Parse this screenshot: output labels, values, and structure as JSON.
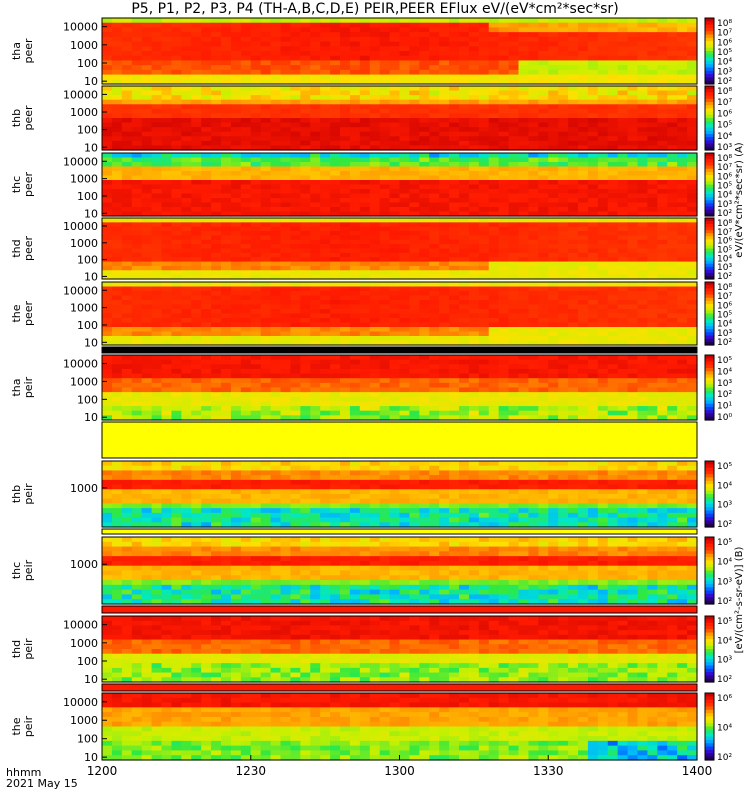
{
  "title": "P5, P1, P2, P3, P4 (TH-A,B,C,D,E) PEIR,PEER EFlux eV/(eV*cm²*sec*sr)",
  "x_axis_label_1": "hhmm",
  "x_axis_label_2": "2021 May 15",
  "colors": {
    "background": "#ffffff",
    "colormap": [
      "#1e0050",
      "#3a00c8",
      "#0050ff",
      "#00b4ff",
      "#00e8c8",
      "#30e840",
      "#c8f000",
      "#ffe000",
      "#ffa000",
      "#ff3c00",
      "#ff1a00",
      "#c80000"
    ],
    "fill_bar": "#ffff00",
    "white_gap": "#ffffff",
    "dark_line": "#000000"
  },
  "chart_data": [
    {
      "type": "heatmap",
      "label": "tha peer",
      "ylabel": [
        "tha",
        "peer"
      ],
      "yscale": "log",
      "ylim": [
        7,
        30000
      ],
      "yticks": [
        "10000",
        "1000",
        "100",
        "10"
      ],
      "colorbar_ticks": [
        "10⁸",
        "10⁷",
        "10⁶",
        "10⁵",
        "10⁴",
        "10³",
        "10²"
      ]
    },
    {
      "type": "heatmap",
      "label": "thb peer",
      "ylabel": [
        "thb",
        "peer"
      ],
      "yscale": "log",
      "ylim": [
        7,
        30000
      ],
      "yticks": [
        "10000",
        "1000",
        "100",
        "10"
      ],
      "colorbar_ticks": [
        "10⁸",
        "10⁷",
        "10⁶",
        "10⁵",
        "10⁴",
        "10³"
      ]
    },
    {
      "type": "heatmap",
      "label": "thc peer",
      "ylabel": [
        "thc",
        "peer"
      ],
      "yscale": "log",
      "ylim": [
        7,
        30000
      ],
      "yticks": [
        "10000",
        "1000",
        "100",
        "10"
      ],
      "colorbar_ticks": [
        "10⁸",
        "10⁷",
        "10⁶",
        "10⁵",
        "10⁴",
        "10³",
        "10²"
      ]
    },
    {
      "type": "heatmap",
      "label": "thd peer",
      "ylabel": [
        "thd",
        "peer"
      ],
      "yscale": "log",
      "ylim": [
        7,
        30000
      ],
      "yticks": [
        "10000",
        "1000",
        "100",
        "10"
      ],
      "colorbar_ticks": [
        "10⁸",
        "10⁷",
        "10⁶",
        "10⁵",
        "10⁴",
        "10³",
        "10²"
      ]
    },
    {
      "type": "heatmap",
      "label": "the peer",
      "ylabel": [
        "the",
        "peer"
      ],
      "yscale": "log",
      "ylim": [
        7,
        30000
      ],
      "yticks": [
        "10000",
        "1000",
        "100",
        "10"
      ],
      "colorbar_ticks": [
        "10⁸",
        "10⁷",
        "10⁶",
        "10⁵",
        "10⁴",
        "10³",
        "10²"
      ]
    },
    {
      "type": "heatmap",
      "label": "tha peir",
      "ylabel": [
        "tha",
        "peir"
      ],
      "yscale": "log",
      "ylim": [
        7,
        30000
      ],
      "yticks": [
        "10000",
        "1000",
        "100",
        "10"
      ],
      "colorbar_ticks": [
        "10⁵",
        "10⁴",
        "10³",
        "10²",
        "10¹",
        "10⁰"
      ]
    },
    {
      "type": "heatmap",
      "label": "thb peir",
      "ylabel": [
        "thb",
        "peir"
      ],
      "yscale": "log",
      "ylim": [
        7,
        30000
      ],
      "yticks": [
        "1000"
      ],
      "colorbar_ticks": [
        "10⁵",
        "10⁴",
        "10³",
        "10²"
      ]
    },
    {
      "type": "heatmap",
      "label": "thc peir",
      "ylabel": [
        "thc",
        "peir"
      ],
      "yscale": "log",
      "ylim": [
        7,
        30000
      ],
      "yticks": [
        "1000"
      ],
      "colorbar_ticks": [
        "10⁵",
        "10⁴",
        "10³",
        "10²"
      ]
    },
    {
      "type": "heatmap",
      "label": "thd peir",
      "ylabel": [
        "thd",
        "peir"
      ],
      "yscale": "log",
      "ylim": [
        7,
        30000
      ],
      "yticks": [
        "10000",
        "1000",
        "100",
        "10"
      ],
      "colorbar_ticks": [
        "10⁵",
        "10⁴",
        "10³",
        "10²"
      ]
    },
    {
      "type": "heatmap",
      "label": "the peir",
      "ylabel": [
        "the",
        "peir"
      ],
      "yscale": "log",
      "ylim": [
        7,
        30000
      ],
      "yticks": [
        "10000",
        "1000",
        "100",
        "10"
      ],
      "colorbar_ticks": [
        "10⁶",
        "10⁴",
        "10²"
      ]
    }
  ],
  "x_ticks": [
    "1200",
    "1230",
    "1300",
    "1330",
    "1400"
  ],
  "colorbar_units": [
    "eV/(eV*cm²*sec*sr) (A)",
    "[eV/(cm²-s-sr-eV)] (B)"
  ]
}
